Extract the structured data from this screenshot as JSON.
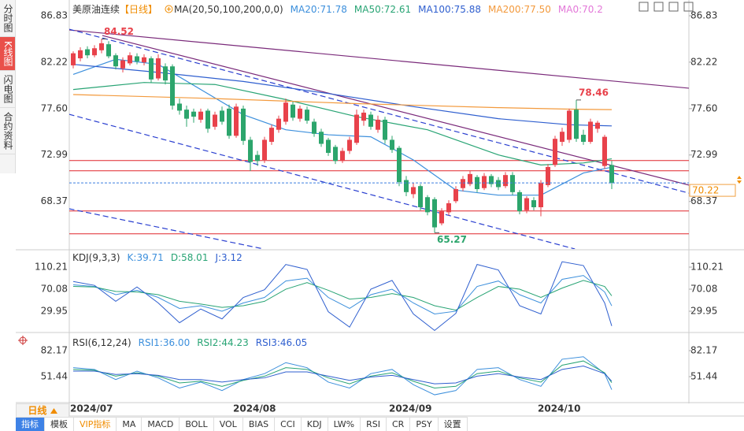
{
  "sidebar_tabs": [
    "分时图",
    "K线图",
    "闪电图",
    "合约资料"
  ],
  "active_tab": 1,
  "period": "日线",
  "toolbar": [
    "指标",
    "模板",
    "VIP指标",
    "MA",
    "MACD",
    "BOLL",
    "VOL",
    "BIAS",
    "CCI",
    "KDJ",
    "LW%",
    "RSI",
    "CR",
    "PSY",
    "设置"
  ],
  "chart_data": [
    {
      "type": "candlestick",
      "title": "美原油连续",
      "period_label": "【日线】",
      "indicator_label": "MA(20,50,100,200,0,0)",
      "categories": [
        "2024/07",
        null,
        null,
        null,
        null,
        null,
        null,
        null,
        null,
        null,
        null,
        null,
        null,
        null,
        null,
        null,
        null,
        null,
        null,
        null,
        null,
        null,
        null,
        "2024/08",
        null,
        null,
        null,
        null,
        null,
        null,
        null,
        null,
        null,
        null,
        null,
        null,
        null,
        null,
        null,
        null,
        null,
        null,
        null,
        null,
        null,
        "2024/09",
        null,
        null,
        null,
        null,
        null,
        null,
        null,
        null,
        null,
        null,
        null,
        null,
        null,
        null,
        null,
        null,
        null,
        null,
        null,
        null,
        "2024/10",
        null,
        null,
        null,
        null,
        null,
        null,
        null,
        null,
        null,
        null
      ],
      "open": [
        81.9,
        82.6,
        83.5,
        82.9,
        83.4,
        84.0,
        82.9,
        81.6,
        82.1,
        82.8,
        82.2,
        82.6,
        80.6,
        81.8,
        81.8,
        78.1,
        77.5,
        77.3,
        76.5,
        77.4,
        75.8,
        77.4,
        77.6,
        74.9,
        77.6,
        74.5,
        73.0,
        72.5,
        74.3,
        75.5,
        76.3,
        78.0,
        76.6,
        77.5,
        76.3,
        75.3,
        74.5,
        73.8,
        72.4,
        73.4,
        74.2,
        76.4,
        77.0,
        75.5,
        76.5,
        74.5,
        73.7,
        70.5,
        69.1,
        69.9,
        68.8,
        68.6,
        66.2,
        67.3,
        68.4,
        69.7,
        70.1,
        70.8,
        69.7,
        70.9,
        70.5,
        69.9,
        71.0,
        69.3,
        67.5,
        68.5,
        67.8,
        70.0,
        72.0,
        74.3,
        74.5,
        77.5,
        75.0,
        74.3,
        75.6,
        71.9,
        72.0
      ],
      "high": [
        83.3,
        83.7,
        83.8,
        83.9,
        84.52,
        84.3,
        83.1,
        82.7,
        83.2,
        83.1,
        83.0,
        82.8,
        83.0,
        82.1,
        82.0,
        78.6,
        77.9,
        77.6,
        77.6,
        77.6,
        77.3,
        77.8,
        78.0,
        78.1,
        77.9,
        74.8,
        73.4,
        74.8,
        76.0,
        76.9,
        78.6,
        78.3,
        77.9,
        77.8,
        76.6,
        75.6,
        74.7,
        74.0,
        73.7,
        74.8,
        77.5,
        77.5,
        77.3,
        76.9,
        76.8,
        74.9,
        73.9,
        70.9,
        70.2,
        70.1,
        69.0,
        68.8,
        67.7,
        68.5,
        69.9,
        70.9,
        71.4,
        71.0,
        71.2,
        71.1,
        70.8,
        71.3,
        71.3,
        69.5,
        68.9,
        68.8,
        70.5,
        72.1,
        74.9,
        75.7,
        77.6,
        78.46,
        75.5,
        76.6,
        76.4,
        75.0,
        72.4
      ],
      "low": [
        81.6,
        82.3,
        82.6,
        82.7,
        83.1,
        82.6,
        81.5,
        81.2,
        81.9,
        82.0,
        81.9,
        80.2,
        80.4,
        80.0,
        77.5,
        77.0,
        75.8,
        76.2,
        76.2,
        75.2,
        75.5,
        76.0,
        74.6,
        74.7,
        74.0,
        71.4,
        71.9,
        72.2,
        74.0,
        75.2,
        76.0,
        76.4,
        76.3,
        76.1,
        74.8,
        73.8,
        72.9,
        72.1,
        72.2,
        73.1,
        74.0,
        75.9,
        75.5,
        75.2,
        74.1,
        73.2,
        69.9,
        68.9,
        68.7,
        67.5,
        67.0,
        65.27,
        66.0,
        67.0,
        68.2,
        69.4,
        69.9,
        69.3,
        69.5,
        69.8,
        69.5,
        69.7,
        69.0,
        67.1,
        67.2,
        67.5,
        66.9,
        69.8,
        71.8,
        73.9,
        74.2,
        74.3,
        74.0,
        74.1,
        75.2,
        71.6,
        69.6
      ],
      "close": [
        83.1,
        83.4,
        82.9,
        83.6,
        84.1,
        82.8,
        81.8,
        82.4,
        82.9,
        82.3,
        82.7,
        80.5,
        82.6,
        80.4,
        77.9,
        77.4,
        76.6,
        76.8,
        77.3,
        75.6,
        77.0,
        76.3,
        74.9,
        77.8,
        74.4,
        72.3,
        72.4,
        74.5,
        75.7,
        76.6,
        78.2,
        76.7,
        77.6,
        76.4,
        75.1,
        74.1,
        73.2,
        72.4,
        73.4,
        74.5,
        77.0,
        77.2,
        75.8,
        76.5,
        74.5,
        73.5,
        70.3,
        69.3,
        69.8,
        67.8,
        67.3,
        65.8,
        67.4,
        68.2,
        69.6,
        70.6,
        71.1,
        69.6,
        70.9,
        70.1,
        69.8,
        71.0,
        69.3,
        67.4,
        68.7,
        67.8,
        70.2,
        71.8,
        74.6,
        75.3,
        77.4,
        74.6,
        74.3,
        76.3,
        76.2,
        74.8,
        70.22
      ],
      "up_color": "#e8424b",
      "down_color": "#2ca56c",
      "ylim": [
        63.65,
        87.77
      ],
      "yticks": [
        86.83,
        82.22,
        {
          "value": 77.6,
          "label": "77.60"
        },
        72.99,
        68.37
      ],
      "series": [
        {
          "name": "MA20:71.78",
          "color": "#3c8fdc",
          "x": [
            0,
            6,
            12,
            18,
            24,
            30,
            36,
            42,
            48,
            54,
            60,
            66,
            72,
            76
          ],
          "values": [
            81.0,
            82.5,
            82.0,
            79.5,
            77.0,
            75.5,
            75.0,
            74.8,
            72.5,
            69.5,
            69.0,
            69.0,
            71.2,
            71.78
          ]
        },
        {
          "name": "MA50:72.61",
          "color": "#28a474",
          "x": [
            0,
            10,
            20,
            30,
            40,
            50,
            60,
            66,
            72,
            76
          ],
          "values": [
            79.5,
            80.2,
            80.0,
            78.5,
            76.8,
            75.5,
            73.0,
            72.0,
            72.2,
            72.61
          ]
        },
        {
          "name": "MA100:75.88",
          "color": "#2f5fcf",
          "x": [
            0,
            12,
            24,
            36,
            48,
            60,
            70,
            76
          ],
          "values": [
            82.0,
            81.2,
            80.3,
            79.1,
            77.8,
            76.6,
            76.0,
            75.88
          ]
        },
        {
          "name": "MA200:77.50",
          "color": "#f39a3d",
          "x": [
            0,
            20,
            40,
            60,
            70,
            76
          ],
          "values": [
            79.0,
            78.6,
            78.1,
            77.7,
            77.55,
            77.5
          ]
        },
        {
          "name": "MA0:70.2",
          "color": "#e377d8"
        }
      ],
      "horizontal_lines": {
        "color": "#e0262b",
        "values": [
          72.44,
          71.42,
          67.43,
          65.16
        ]
      },
      "trend_lines": [
        {
          "color": "#7a2a7a",
          "dashed": false,
          "points": [
            [
              -0.6,
              85.42
            ],
            [
              86.9,
              79.63
            ]
          ]
        },
        {
          "color": "#7a2a7a",
          "dashed": false,
          "points": [
            [
              4.1,
              84.87
            ],
            [
              86.9,
              70.0
            ]
          ]
        },
        {
          "color": "#2a3fd0",
          "dashed": true,
          "points": [
            [
              -0.6,
              85.5
            ],
            [
              86.9,
              69.2
            ]
          ]
        },
        {
          "color": "#2a3fd0",
          "dashed": true,
          "points": [
            [
              -0.6,
              77.04
            ],
            [
              70.8,
              63.65
            ]
          ]
        },
        {
          "color": "#2a3fd0",
          "dashed": true,
          "points": [
            [
              -0.6,
              67.65
            ],
            [
              26.9,
              63.65
            ]
          ]
        }
      ],
      "high_low_labels": [
        84.52,
        78.46,
        65.27
      ],
      "price_line_color": "#3b7de0"
    },
    {
      "type": "line",
      "title": "KDJ(9,3,3)",
      "x": [
        0,
        3,
        6,
        9,
        12,
        15,
        18,
        21,
        24,
        27,
        30,
        33,
        36,
        39,
        42,
        45,
        48,
        51,
        54,
        57,
        60,
        63,
        66,
        69,
        72,
        75,
        76
      ],
      "series": [
        {
          "name": "K:39.71",
          "color": "#3c8fdc",
          "values": [
            78,
            75,
            60,
            68,
            55,
            35,
            40,
            30,
            45,
            55,
            85,
            90,
            55,
            35,
            60,
            70,
            45,
            25,
            30,
            75,
            85,
            60,
            45,
            88,
            95,
            65,
            39.71
          ]
        },
        {
          "name": "D:58.01",
          "color": "#28a474",
          "values": [
            75,
            74,
            66,
            65,
            60,
            48,
            43,
            37,
            40,
            48,
            70,
            82,
            68,
            52,
            55,
            62,
            55,
            40,
            32,
            55,
            75,
            70,
            55,
            72,
            86,
            75,
            58.01
          ]
        },
        {
          "name": "J:3.12",
          "color": "#2f5fcf",
          "values": [
            84,
            77,
            48,
            74,
            45,
            9,
            34,
            16,
            55,
            69,
            115,
            106,
            29,
            1,
            70,
            86,
            25,
            -5,
            26,
            115,
            105,
            40,
            25,
            120,
            113,
            45,
            3.12
          ]
        }
      ],
      "ylim": [
        -5.9,
        140.3
      ],
      "yticks": [
        110.21,
        70.08,
        29.95
      ]
    },
    {
      "type": "line",
      "title": "RSI(6,12,24)",
      "x": [
        0,
        3,
        6,
        9,
        12,
        15,
        18,
        21,
        24,
        27,
        30,
        33,
        36,
        39,
        42,
        45,
        48,
        51,
        54,
        57,
        60,
        63,
        66,
        69,
        72,
        75,
        76
      ],
      "series": [
        {
          "name": "RSI1:36.00",
          "color": "#3c8fdc",
          "values": [
            62,
            60,
            48,
            58,
            50,
            38,
            45,
            35,
            48,
            55,
            68,
            62,
            45,
            38,
            55,
            60,
            42,
            30,
            35,
            60,
            62,
            48,
            40,
            72,
            75,
            55,
            36
          ]
        },
        {
          "name": "RSI2:44.23",
          "color": "#28a474",
          "values": [
            60,
            59,
            52,
            56,
            52,
            44,
            46,
            40,
            47,
            52,
            62,
            60,
            50,
            43,
            52,
            56,
            46,
            38,
            40,
            55,
            58,
            50,
            45,
            65,
            70,
            56,
            44.23
          ]
        },
        {
          "name": "RSI3:46.05",
          "color": "#2f5fcf",
          "values": [
            58,
            58,
            54,
            55,
            53,
            48,
            48,
            45,
            48,
            50,
            57,
            57,
            52,
            47,
            51,
            53,
            48,
            43,
            44,
            52,
            55,
            51,
            48,
            60,
            64,
            55,
            46.05
          ]
        }
      ],
      "ylim": [
        19.8,
        100.8
      ],
      "yticks": [
        82.17,
        51.44
      ]
    }
  ]
}
